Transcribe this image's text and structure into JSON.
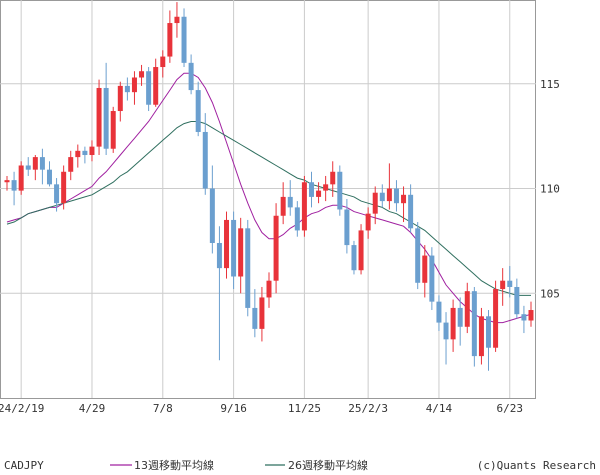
{
  "chart_data": {
    "type": "candlestick",
    "symbol": "CADJPY",
    "credit": "(c)Quants Research",
    "interval": "weekly",
    "y_range": [
      100,
      119
    ],
    "y_ticks": [
      105,
      110,
      115
    ],
    "grid": true,
    "x_tick_labels": [
      {
        "index": 2,
        "label": "24/2/19"
      },
      {
        "index": 12,
        "label": "4/29"
      },
      {
        "index": 22,
        "label": "7/8"
      },
      {
        "index": 32,
        "label": "9/16"
      },
      {
        "index": 42,
        "label": "11/25"
      },
      {
        "index": 51,
        "label": "25/2/3"
      },
      {
        "index": 61,
        "label": "4/14"
      },
      {
        "index": 71,
        "label": "6/23"
      }
    ],
    "up_color": "#e8333a",
    "down_color": "#6b9fcf",
    "candles": [
      [
        110.3,
        110.6,
        109.9,
        110.4
      ],
      [
        110.4,
        110.8,
        109.2,
        109.9
      ],
      [
        109.9,
        111.3,
        109.7,
        111.1
      ],
      [
        111.1,
        111.5,
        110.6,
        110.9
      ],
      [
        110.9,
        111.6,
        110.4,
        111.5
      ],
      [
        111.5,
        111.9,
        110.2,
        110.9
      ],
      [
        110.9,
        111.3,
        110.1,
        110.2
      ],
      [
        110.2,
        110.5,
        108.9,
        109.3
      ],
      [
        109.3,
        111.1,
        109.0,
        110.8
      ],
      [
        110.8,
        111.8,
        110.4,
        111.5
      ],
      [
        111.5,
        112.1,
        111.0,
        111.8
      ],
      [
        111.8,
        112.0,
        111.2,
        111.6
      ],
      [
        111.6,
        112.3,
        111.3,
        112.0
      ],
      [
        112.0,
        115.2,
        111.6,
        114.8
      ],
      [
        114.8,
        116.0,
        111.6,
        111.9
      ],
      [
        111.9,
        113.9,
        111.7,
        113.7
      ],
      [
        113.7,
        115.1,
        113.2,
        114.9
      ],
      [
        114.9,
        115.3,
        114.2,
        114.6
      ],
      [
        114.6,
        115.6,
        114.0,
        115.3
      ],
      [
        115.3,
        115.9,
        114.9,
        115.6
      ],
      [
        115.6,
        115.8,
        113.7,
        114.0
      ],
      [
        114.0,
        116.2,
        113.9,
        115.8
      ],
      [
        115.8,
        116.6,
        115.3,
        116.3
      ],
      [
        116.3,
        118.5,
        116.0,
        117.9
      ],
      [
        117.9,
        118.9,
        117.2,
        118.2
      ],
      [
        118.2,
        118.6,
        115.8,
        116.0
      ],
      [
        116.0,
        116.4,
        114.5,
        114.7
      ],
      [
        114.7,
        115.1,
        112.5,
        112.7
      ],
      [
        112.7,
        113.6,
        109.7,
        110.0
      ],
      [
        110.0,
        111.1,
        106.9,
        107.4
      ],
      [
        107.4,
        108.2,
        101.8,
        106.2
      ],
      [
        106.2,
        108.9,
        105.7,
        108.5
      ],
      [
        108.5,
        108.9,
        105.2,
        105.8
      ],
      [
        105.8,
        108.6,
        105.0,
        108.1
      ],
      [
        108.1,
        108.5,
        103.9,
        104.3
      ],
      [
        104.3,
        105.2,
        102.9,
        103.3
      ],
      [
        103.3,
        105.3,
        102.7,
        104.8
      ],
      [
        104.8,
        106.0,
        104.3,
        105.6
      ],
      [
        105.6,
        109.3,
        105.0,
        108.7
      ],
      [
        108.7,
        110.3,
        108.3,
        109.6
      ],
      [
        109.6,
        110.4,
        108.7,
        109.1
      ],
      [
        109.1,
        109.4,
        107.7,
        108.0
      ],
      [
        108.0,
        110.6,
        107.7,
        110.3
      ],
      [
        110.3,
        110.8,
        109.1,
        109.6
      ],
      [
        109.6,
        110.3,
        109.3,
        109.9
      ],
      [
        109.9,
        110.6,
        109.4,
        110.2
      ],
      [
        110.2,
        111.3,
        109.6,
        110.8
      ],
      [
        110.8,
        111.1,
        108.7,
        109.0
      ],
      [
        109.0,
        109.5,
        106.9,
        107.3
      ],
      [
        107.3,
        107.5,
        105.9,
        106.1
      ],
      [
        106.1,
        108.3,
        105.9,
        108.0
      ],
      [
        108.0,
        109.1,
        107.6,
        108.8
      ],
      [
        108.8,
        110.1,
        108.3,
        109.8
      ],
      [
        109.8,
        110.2,
        109.1,
        109.4
      ],
      [
        109.4,
        111.2,
        109.0,
        110.0
      ],
      [
        110.0,
        110.4,
        108.9,
        109.3
      ],
      [
        109.3,
        110.1,
        108.4,
        109.7
      ],
      [
        109.7,
        110.2,
        107.9,
        108.1
      ],
      [
        108.1,
        108.4,
        105.2,
        105.5
      ],
      [
        105.5,
        107.3,
        104.8,
        106.8
      ],
      [
        106.8,
        107.2,
        104.2,
        104.6
      ],
      [
        104.6,
        104.9,
        103.2,
        103.6
      ],
      [
        103.6,
        104.1,
        101.6,
        102.8
      ],
      [
        102.8,
        104.7,
        102.2,
        104.3
      ],
      [
        104.3,
        104.8,
        102.5,
        103.4
      ],
      [
        103.4,
        105.5,
        103.1,
        105.1
      ],
      [
        105.1,
        105.3,
        101.5,
        102.0
      ],
      [
        102.0,
        104.3,
        101.6,
        103.9
      ],
      [
        103.9,
        104.2,
        101.3,
        102.4
      ],
      [
        102.4,
        105.6,
        102.2,
        105.2
      ],
      [
        105.2,
        106.2,
        104.4,
        105.6
      ],
      [
        105.6,
        106.3,
        104.8,
        105.3
      ],
      [
        105.3,
        105.7,
        103.8,
        104.0
      ],
      [
        104.0,
        104.4,
        103.1,
        103.7
      ],
      [
        103.7,
        104.6,
        103.4,
        104.2
      ]
    ],
    "series": [
      {
        "name": "13週移動平均線",
        "color": "#a020a0",
        "values": [
          108.4,
          108.5,
          108.6,
          108.8,
          108.9,
          109.0,
          109.1,
          109.1,
          109.3,
          109.5,
          109.7,
          109.9,
          110.1,
          110.5,
          110.8,
          111.2,
          111.6,
          112.0,
          112.4,
          112.8,
          113.2,
          113.7,
          114.2,
          114.7,
          115.2,
          115.5,
          115.5,
          115.3,
          114.8,
          114.1,
          113.2,
          112.2,
          111.2,
          110.2,
          109.3,
          108.5,
          107.9,
          107.6,
          107.6,
          107.8,
          108.1,
          108.3,
          108.6,
          108.8,
          108.9,
          109.1,
          109.2,
          109.2,
          109.1,
          108.9,
          108.8,
          108.7,
          108.6,
          108.5,
          108.4,
          108.3,
          108.2,
          107.9,
          107.5,
          107.1,
          106.6,
          106.0,
          105.4,
          105.0,
          104.6,
          104.3,
          104.0,
          103.8,
          103.7,
          103.6,
          103.6,
          103.7,
          103.8,
          103.9,
          104.0
        ]
      },
      {
        "name": "26週移動平均線",
        "color": "#2f6f5f",
        "values": [
          108.3,
          108.4,
          108.6,
          108.8,
          108.9,
          109.0,
          109.1,
          109.2,
          109.3,
          109.4,
          109.5,
          109.6,
          109.7,
          109.9,
          110.1,
          110.3,
          110.6,
          110.8,
          111.1,
          111.4,
          111.7,
          112.0,
          112.3,
          112.6,
          112.9,
          113.1,
          113.2,
          113.2,
          113.1,
          112.9,
          112.7,
          112.5,
          112.3,
          112.1,
          111.9,
          111.7,
          111.5,
          111.3,
          111.1,
          110.9,
          110.7,
          110.5,
          110.4,
          110.2,
          110.1,
          110.0,
          109.9,
          109.8,
          109.7,
          109.6,
          109.4,
          109.3,
          109.2,
          109.1,
          108.9,
          108.8,
          108.6,
          108.4,
          108.2,
          108.0,
          107.7,
          107.4,
          107.1,
          106.8,
          106.5,
          106.2,
          105.9,
          105.6,
          105.4,
          105.2,
          105.1,
          105.0,
          104.9,
          104.9,
          104.9
        ]
      }
    ]
  }
}
